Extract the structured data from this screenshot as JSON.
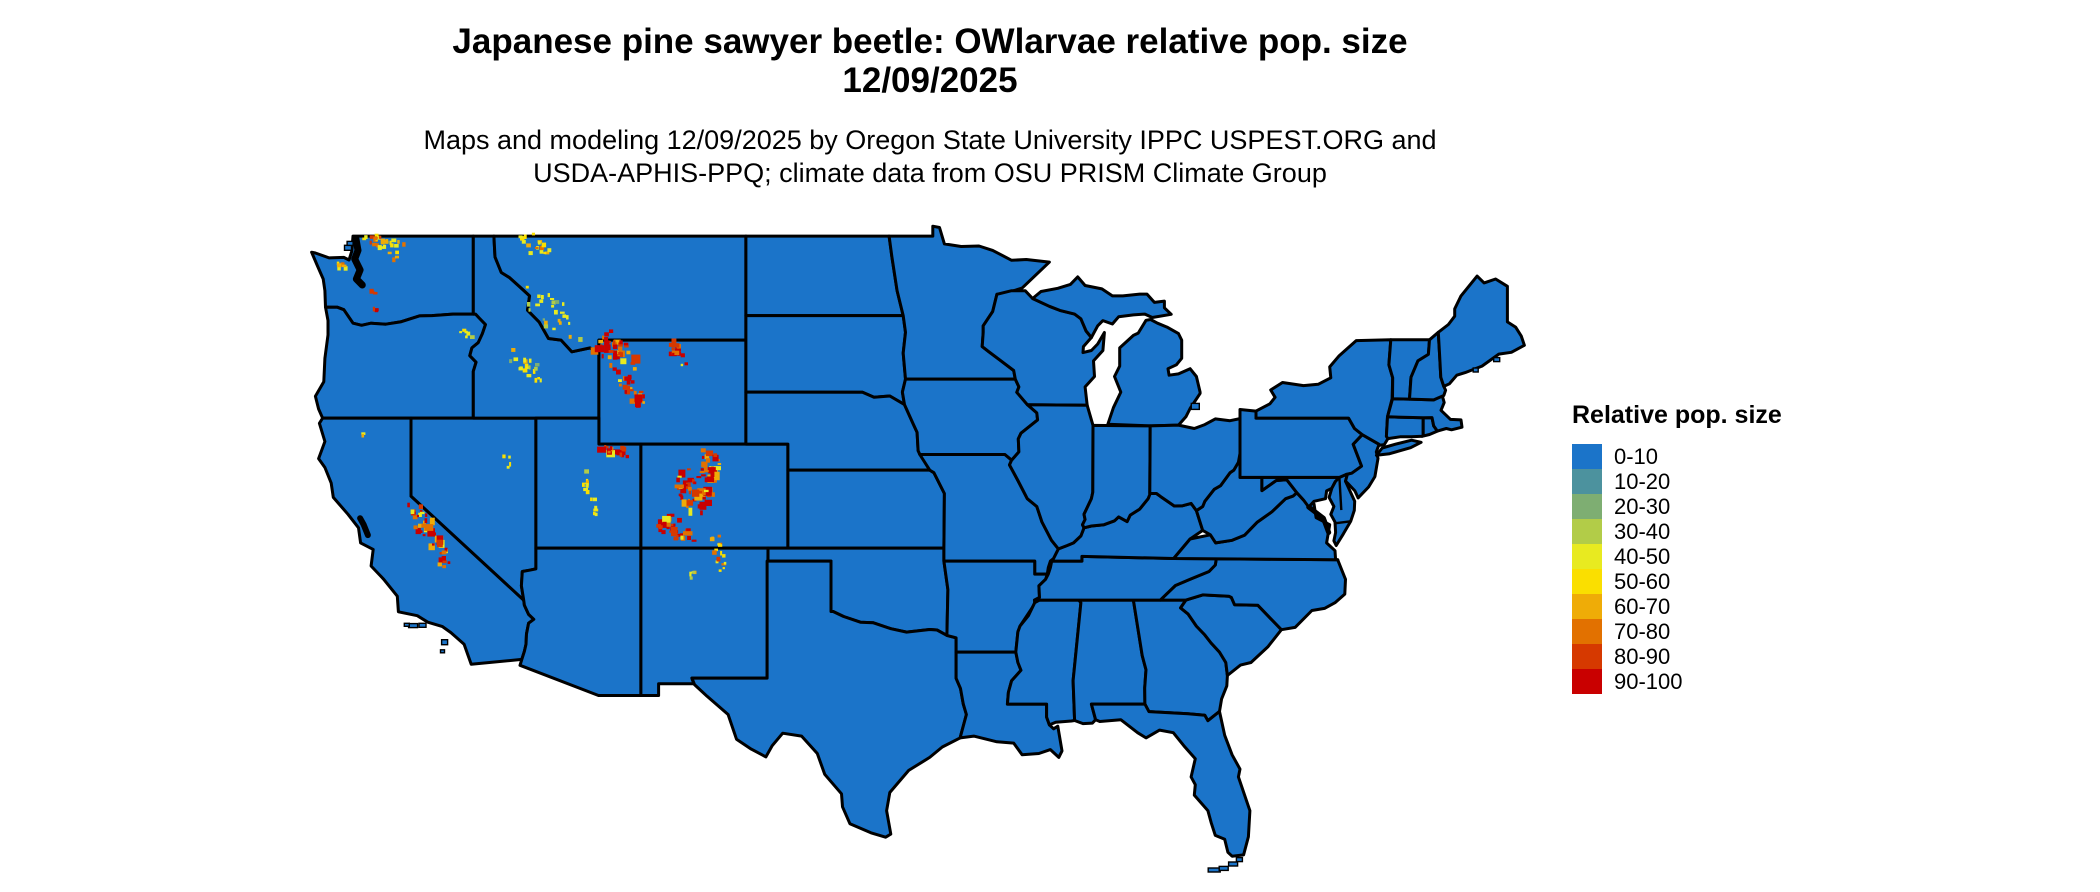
{
  "header": {
    "title_line1": "Japanese pine sawyer beetle: OWlarvae relative pop. size",
    "title_line2": "12/09/2025",
    "subtitle_line1": "Maps and modeling 12/09/2025 by Oregon State University IPPC USPEST.ORG and",
    "subtitle_line2": "USDA-APHIS-PPQ; climate data from OSU PRISM Climate Group"
  },
  "legend": {
    "title": "Relative pop. size",
    "entries": [
      {
        "label": "0-10",
        "color": "#1B74C9"
      },
      {
        "label": "10-20",
        "color": "#4C929E"
      },
      {
        "label": "20-30",
        "color": "#7EAE72"
      },
      {
        "label": "30-40",
        "color": "#B2CC48"
      },
      {
        "label": "40-50",
        "color": "#E8EA20"
      },
      {
        "label": "50-60",
        "color": "#FADF00"
      },
      {
        "label": "60-70",
        "color": "#EFAC07"
      },
      {
        "label": "70-80",
        "color": "#E27100"
      },
      {
        "label": "80-90",
        "color": "#D63900"
      },
      {
        "label": "90-100",
        "color": "#C90000"
      }
    ]
  },
  "map": {
    "base_fill": "#1B74C9",
    "border_color": "#000000",
    "background": "#FFFFFF",
    "hotspots": [
      {
        "name": "north-cascades-wa",
        "from": [
          -121.9,
          48.95
        ],
        "to": [
          -120.35,
          48.3
        ],
        "spread": 9,
        "count": 30,
        "level": 2
      },
      {
        "name": "olympic-mtns-wa",
        "from": [
          -123.6,
          47.95
        ],
        "to": [
          -123.2,
          47.8
        ],
        "spread": 4,
        "count": 6,
        "level": 2
      },
      {
        "name": "mt-rainier-wa",
        "from": [
          -121.8,
          46.9
        ],
        "to": [
          -121.7,
          46.8
        ],
        "spread": 2,
        "count": 3,
        "level": 3
      },
      {
        "name": "mt-adams-wa",
        "from": [
          -121.7,
          46.25
        ],
        "to": [
          -121.5,
          46.05
        ],
        "spread": 2,
        "count": 3,
        "level": 3
      },
      {
        "name": "glacier-np-mt",
        "from": [
          -114.5,
          48.9
        ],
        "to": [
          -113.6,
          48.35
        ],
        "spread": 8,
        "count": 18,
        "level": 2
      },
      {
        "name": "western-montana",
        "from": [
          -114.1,
          46.8
        ],
        "to": [
          -112.5,
          45.4
        ],
        "spread": 13,
        "count": 26,
        "level": 1
      },
      {
        "name": "sawtooth-id",
        "from": [
          -115.2,
          44.35
        ],
        "to": [
          -113.8,
          43.75
        ],
        "spread": 10,
        "count": 20,
        "level": 1
      },
      {
        "name": "wallowa-or",
        "from": [
          -117.5,
          45.35
        ],
        "to": [
          -117.1,
          45.1
        ],
        "spread": 4,
        "count": 6,
        "level": 1
      },
      {
        "name": "yellowstone-absaroka-wy",
        "from": [
          -110.85,
          45.05
        ],
        "to": [
          -109.75,
          44.2
        ],
        "spread": 12,
        "count": 38,
        "level": 3
      },
      {
        "name": "wind-river-wy",
        "from": [
          -109.9,
          43.65
        ],
        "to": [
          -109.15,
          42.6
        ],
        "spread": 7,
        "count": 26,
        "level": 3
      },
      {
        "name": "bighorn-wy",
        "from": [
          -107.55,
          44.85
        ],
        "to": [
          -107.05,
          44.0
        ],
        "spread": 5,
        "count": 16,
        "level": 3
      },
      {
        "name": "uinta-ut",
        "from": [
          -110.9,
          40.78
        ],
        "to": [
          -109.7,
          40.68
        ],
        "spread": 5,
        "count": 18,
        "level": 3
      },
      {
        "name": "wasatch-plateau-ut",
        "from": [
          -111.55,
          39.9
        ],
        "to": [
          -111.4,
          38.3
        ],
        "spread": 5,
        "count": 14,
        "level": 1
      },
      {
        "name": "colorado-front-range",
        "from": [
          -105.7,
          40.65
        ],
        "to": [
          -106.0,
          38.85
        ],
        "spread": 9,
        "count": 46,
        "level": 3
      },
      {
        "name": "colorado-sawatch",
        "from": [
          -106.95,
          39.9
        ],
        "to": [
          -106.55,
          38.6
        ],
        "spread": 10,
        "count": 32,
        "level": 3
      },
      {
        "name": "san-juan-co",
        "from": [
          -107.95,
          38.05
        ],
        "to": [
          -106.85,
          37.45
        ],
        "spread": 10,
        "count": 34,
        "level": 3
      },
      {
        "name": "sangre-de-cristo",
        "from": [
          -105.5,
          37.5
        ],
        "to": [
          -105.2,
          36.1
        ],
        "spread": 5,
        "count": 16,
        "level": 2
      },
      {
        "name": "jemez-nm",
        "from": [
          -106.65,
          36.05
        ],
        "to": [
          -106.4,
          35.8
        ],
        "spread": 4,
        "count": 5,
        "level": 1
      },
      {
        "name": "sierra-nevada-ca",
        "from": [
          -119.95,
          38.75
        ],
        "to": [
          -118.3,
          36.35
        ],
        "spread": 7,
        "count": 44,
        "level": 3
      },
      {
        "name": "mt-shasta-ca",
        "from": [
          -122.35,
          41.4
        ],
        "to": [
          -122.28,
          41.32
        ],
        "spread": 2,
        "count": 2,
        "level": 3
      },
      {
        "name": "ruby-mtns-nv",
        "from": [
          -115.45,
          40.55
        ],
        "to": [
          -115.2,
          40.1
        ],
        "spread": 3,
        "count": 4,
        "level": 1
      }
    ]
  }
}
